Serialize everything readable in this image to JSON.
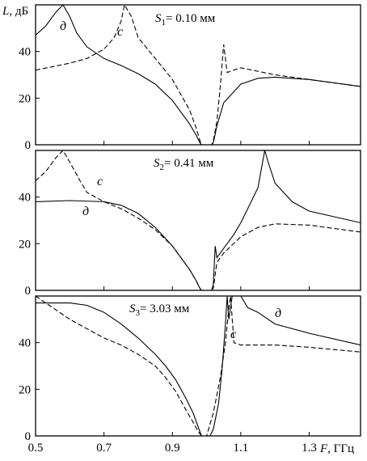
{
  "chart_data": [
    {
      "type": "line",
      "title_sym": "S",
      "title_sub": "1",
      "title_rest": "= 0.10 мм",
      "ylabel_sym": "L",
      "ylabel_rest": ", дБ",
      "xlim": [
        0.5,
        1.45
      ],
      "ylim": [
        0,
        60
      ],
      "yticks": [
        0,
        20,
        40
      ],
      "series": [
        {
          "name": "с",
          "style": "dashed",
          "x": [
            0.5,
            0.55,
            0.6,
            0.65,
            0.7,
            0.73,
            0.75,
            0.76,
            0.78,
            0.8,
            0.85,
            0.9,
            0.95,
            0.97,
            0.98,
            0.985,
            1.0,
            1.015,
            1.02,
            1.03,
            1.04,
            1.05,
            1.06,
            1.1,
            1.2,
            1.3,
            1.45
          ],
          "y": [
            32,
            33.5,
            35,
            37,
            41,
            46,
            53,
            60,
            55,
            46,
            37,
            28,
            15,
            7,
            2,
            0,
            0,
            0,
            2,
            10,
            25,
            43,
            31,
            33,
            30,
            28,
            25
          ]
        },
        {
          "name": "д",
          "style": "solid",
          "x": [
            0.5,
            0.53,
            0.56,
            0.58,
            0.6,
            0.62,
            0.65,
            0.7,
            0.75,
            0.8,
            0.85,
            0.9,
            0.95,
            0.97,
            0.98,
            0.985,
            1.0,
            1.015,
            1.02,
            1.03,
            1.05,
            1.1,
            1.15,
            1.2,
            1.3,
            1.45
          ],
          "y": [
            47,
            51,
            57,
            60,
            55,
            48,
            42,
            37,
            34,
            30.5,
            26,
            19,
            9,
            4,
            1,
            0,
            0,
            0,
            1,
            8,
            18,
            26,
            28.5,
            29,
            28,
            25
          ]
        }
      ]
    },
    {
      "type": "line",
      "title_sym": "S",
      "title_sub": "2",
      "title_rest": "= 0.41 мм",
      "xlim": [
        0.5,
        1.45
      ],
      "ylim": [
        0,
        60
      ],
      "yticks": [
        0,
        20,
        40
      ],
      "series": [
        {
          "name": "с",
          "style": "dashed",
          "x": [
            0.5,
            0.53,
            0.56,
            0.58,
            0.6,
            0.63,
            0.65,
            0.7,
            0.75,
            0.8,
            0.85,
            0.9,
            0.95,
            0.97,
            0.98,
            0.985,
            1.0,
            1.015,
            1.02,
            1.03,
            1.05,
            1.1,
            1.15,
            1.2,
            1.3,
            1.45
          ],
          "y": [
            47,
            51,
            57,
            60,
            55,
            47,
            42,
            38,
            35,
            31,
            26,
            19,
            9,
            4,
            1,
            0,
            0,
            0,
            1,
            12,
            16,
            23,
            27,
            28.5,
            28,
            25
          ]
        },
        {
          "name": "д",
          "style": "solid",
          "x": [
            0.5,
            0.6,
            0.7,
            0.75,
            0.8,
            0.85,
            0.9,
            0.95,
            0.97,
            0.98,
            0.985,
            1.0,
            1.015,
            1.02,
            1.025,
            1.03,
            1.05,
            1.08,
            1.1,
            1.12,
            1.15,
            1.17,
            1.18,
            1.2,
            1.25,
            1.3,
            1.45
          ],
          "y": [
            38,
            38.5,
            38,
            36.5,
            33,
            27,
            19,
            9,
            4,
            1,
            0,
            0,
            0,
            3,
            19,
            14,
            18,
            24,
            29,
            35,
            44,
            60,
            55,
            46,
            38,
            34,
            29
          ]
        }
      ]
    },
    {
      "type": "line",
      "title_sym": "S",
      "title_sub": "3",
      "title_rest": "= 3.03 мм",
      "xlabel_sym": "F",
      "xlabel_rest": ", ГГц",
      "xlim": [
        0.5,
        1.45
      ],
      "ylim": [
        0,
        60
      ],
      "yticks": [
        0,
        20,
        40
      ],
      "xticks": [
        0.5,
        0.7,
        0.9,
        1.1,
        1.3
      ],
      "xtick_labels": [
        "0.5",
        "0.7",
        "0.9",
        "1.1",
        "1.3"
      ],
      "series": [
        {
          "name": "с",
          "style": "dashed",
          "x": [
            0.5,
            0.55,
            0.6,
            0.65,
            0.7,
            0.75,
            0.8,
            0.85,
            0.88,
            0.91,
            0.94,
            0.96,
            0.975,
            0.985,
            1.0,
            1.02,
            1.04,
            1.055,
            1.065,
            1.07,
            1.08,
            1.1,
            1.2,
            1.3,
            1.45
          ],
          "y": [
            60,
            55,
            50,
            46,
            42,
            39,
            35,
            30,
            25,
            19,
            11,
            6,
            2,
            0,
            0,
            10,
            25,
            40,
            55,
            60,
            40,
            39,
            39,
            38,
            36
          ]
        },
        {
          "name": "д",
          "style": "solid",
          "x": [
            0.5,
            0.55,
            0.6,
            0.65,
            0.7,
            0.75,
            0.8,
            0.85,
            0.88,
            0.91,
            0.94,
            0.96,
            0.975,
            0.985,
            1.0,
            1.01,
            1.02,
            1.035,
            1.045,
            1.055,
            1.06,
            1.065,
            1.075,
            1.1,
            1.12,
            1.15,
            1.2,
            1.3,
            1.45
          ],
          "y": [
            57,
            57,
            57,
            56,
            53,
            48,
            42,
            35,
            30,
            24,
            16,
            10,
            4,
            0,
            0,
            0,
            3,
            14,
            28,
            48,
            60,
            50,
            60,
            60,
            55,
            53,
            48,
            44,
            39
          ]
        }
      ]
    }
  ]
}
